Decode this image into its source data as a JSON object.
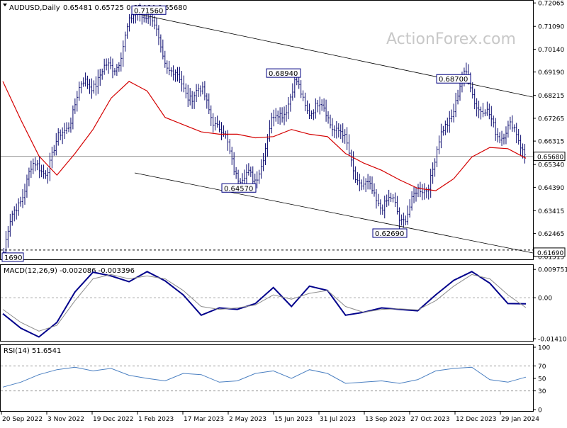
{
  "header": {
    "symbol": "AUDUSD,Daily",
    "ohlc": "0.65481 0.65725 0.65464 0.65680",
    "watermark": "ActionForex.com"
  },
  "colors": {
    "candle": "#0a0a6e",
    "ma": "#d40000",
    "trendline": "#000000",
    "macd": "#00008b",
    "signal": "#8c8c8c",
    "rsi": "#4a7fc1",
    "price_tag_bg": "#ffffff",
    "axis": "#000000",
    "watermark": "#c8c8c8"
  },
  "chart_data": [
    {
      "type": "candlestick",
      "name": "AUDUSD Daily",
      "y_ticks": [
        "0.72065",
        "0.71090",
        "0.70140",
        "0.69190",
        "0.68215",
        "0.67265",
        "0.66315",
        "0.65340",
        "0.64390",
        "0.63415",
        "0.62465",
        "0.61515"
      ],
      "y_range": [
        0.6151,
        0.7207
      ],
      "x_ticks": [
        "20 Sep 2022",
        "3 Nov 2022",
        "19 Dec 2022",
        "1 Feb 2023",
        "17 Mar 2023",
        "2 May 2023",
        "15 Jun 2023",
        "31 Jul 2023",
        "13 Sep 2023",
        "27 Oct 2023",
        "12 Dec 2023",
        "29 Jan 2024"
      ],
      "pivots": [
        0.6169,
        0.6475,
        0.7156,
        0.6457,
        0.6894,
        0.6269,
        0.687,
        0.6568
      ],
      "moving_average": [
        0.688,
        0.672,
        0.657,
        0.649,
        0.658,
        0.668,
        0.681,
        0.688,
        0.684,
        0.673,
        0.67,
        0.667,
        0.666,
        0.666,
        0.6645,
        0.665,
        0.668,
        0.666,
        0.665,
        0.658,
        0.654,
        0.651,
        0.647,
        0.6435,
        0.6425,
        0.6475,
        0.6565,
        0.6605,
        0.66,
        0.656
      ],
      "annotations": [
        {
          "label": "0.71560",
          "value": 0.7156
        },
        {
          "label": "0.68940",
          "value": 0.6894
        },
        {
          "label": "0.68700",
          "value": 0.687
        },
        {
          "label": "0.64570",
          "value": 0.6457
        },
        {
          "label": "0.62690",
          "value": 0.6269
        },
        {
          "label": "1690",
          "value": 0.6169
        }
      ],
      "current_price": {
        "label": "0.65680",
        "value": 0.6568
      },
      "support_level": {
        "label": "0.61690",
        "value": 0.6169
      }
    },
    {
      "type": "line",
      "name": "MACD(12,26,9)",
      "title": "MACD(12,26,9) -0.002086 -0.003396",
      "y_ticks": [
        "0.009751",
        "0.00",
        "-0.014107"
      ],
      "y_range": [
        -0.0141,
        0.0098
      ],
      "series": [
        {
          "name": "MACD",
          "values": [
            -0.0055,
            -0.0105,
            -0.0135,
            -0.0085,
            0.002,
            0.0088,
            0.0075,
            0.0055,
            0.009,
            0.0058,
            0.001,
            -0.006,
            -0.0035,
            -0.004,
            -0.002,
            0.0035,
            -0.003,
            0.004,
            0.0025,
            -0.006,
            -0.005,
            -0.0035,
            -0.004,
            -0.0045,
            0.001,
            0.006,
            0.009,
            0.005,
            -0.002,
            -0.0021
          ]
        },
        {
          "values": [
            -0.004,
            -0.0085,
            -0.0115,
            -0.0095,
            -0.001,
            0.0065,
            0.008,
            0.0065,
            0.0075,
            0.0065,
            0.0025,
            -0.003,
            -0.004,
            -0.0035,
            -0.0025,
            0.001,
            -0.0005,
            0.0015,
            0.0025,
            -0.003,
            -0.005,
            -0.004,
            -0.0038,
            -0.0042,
            -0.001,
            0.004,
            0.008,
            0.0065,
            0.001,
            -0.0034
          ]
        }
      ]
    },
    {
      "type": "line",
      "name": "RSI(14)",
      "title": "RSI(14) 51.6541",
      "y_ticks": [
        "100",
        "70",
        "50",
        "30",
        "0"
      ],
      "y_range": [
        0,
        100
      ],
      "levels": [
        30,
        70
      ],
      "series": [
        {
          "name": "RSI",
          "values": [
            36,
            44,
            56,
            64,
            68,
            62,
            66,
            55,
            50,
            46,
            58,
            56,
            44,
            46,
            58,
            62,
            50,
            64,
            58,
            42,
            44,
            46,
            42,
            48,
            62,
            66,
            68,
            48,
            44,
            52
          ]
        }
      ]
    }
  ]
}
